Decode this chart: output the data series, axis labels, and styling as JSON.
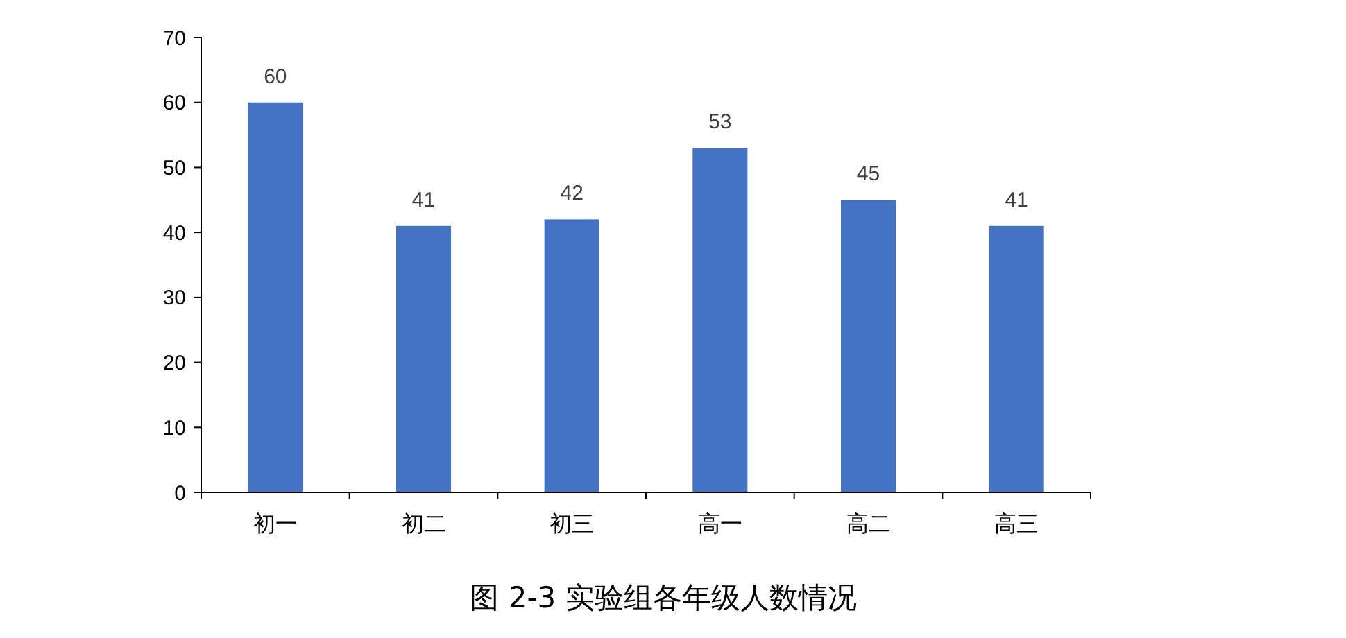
{
  "chart_data": {
    "type": "bar",
    "title": "图 2-3 实验组各年级人数情况",
    "categories": [
      "初一",
      "初二",
      "初三",
      "高一",
      "高二",
      "高三"
    ],
    "values": [
      60,
      41,
      42,
      53,
      45,
      41
    ],
    "color": "#4472c4",
    "ylim": [
      0,
      70
    ],
    "yticks": [
      0,
      10,
      20,
      30,
      40,
      50,
      60,
      70
    ],
    "grid": false,
    "data_labels": true
  }
}
